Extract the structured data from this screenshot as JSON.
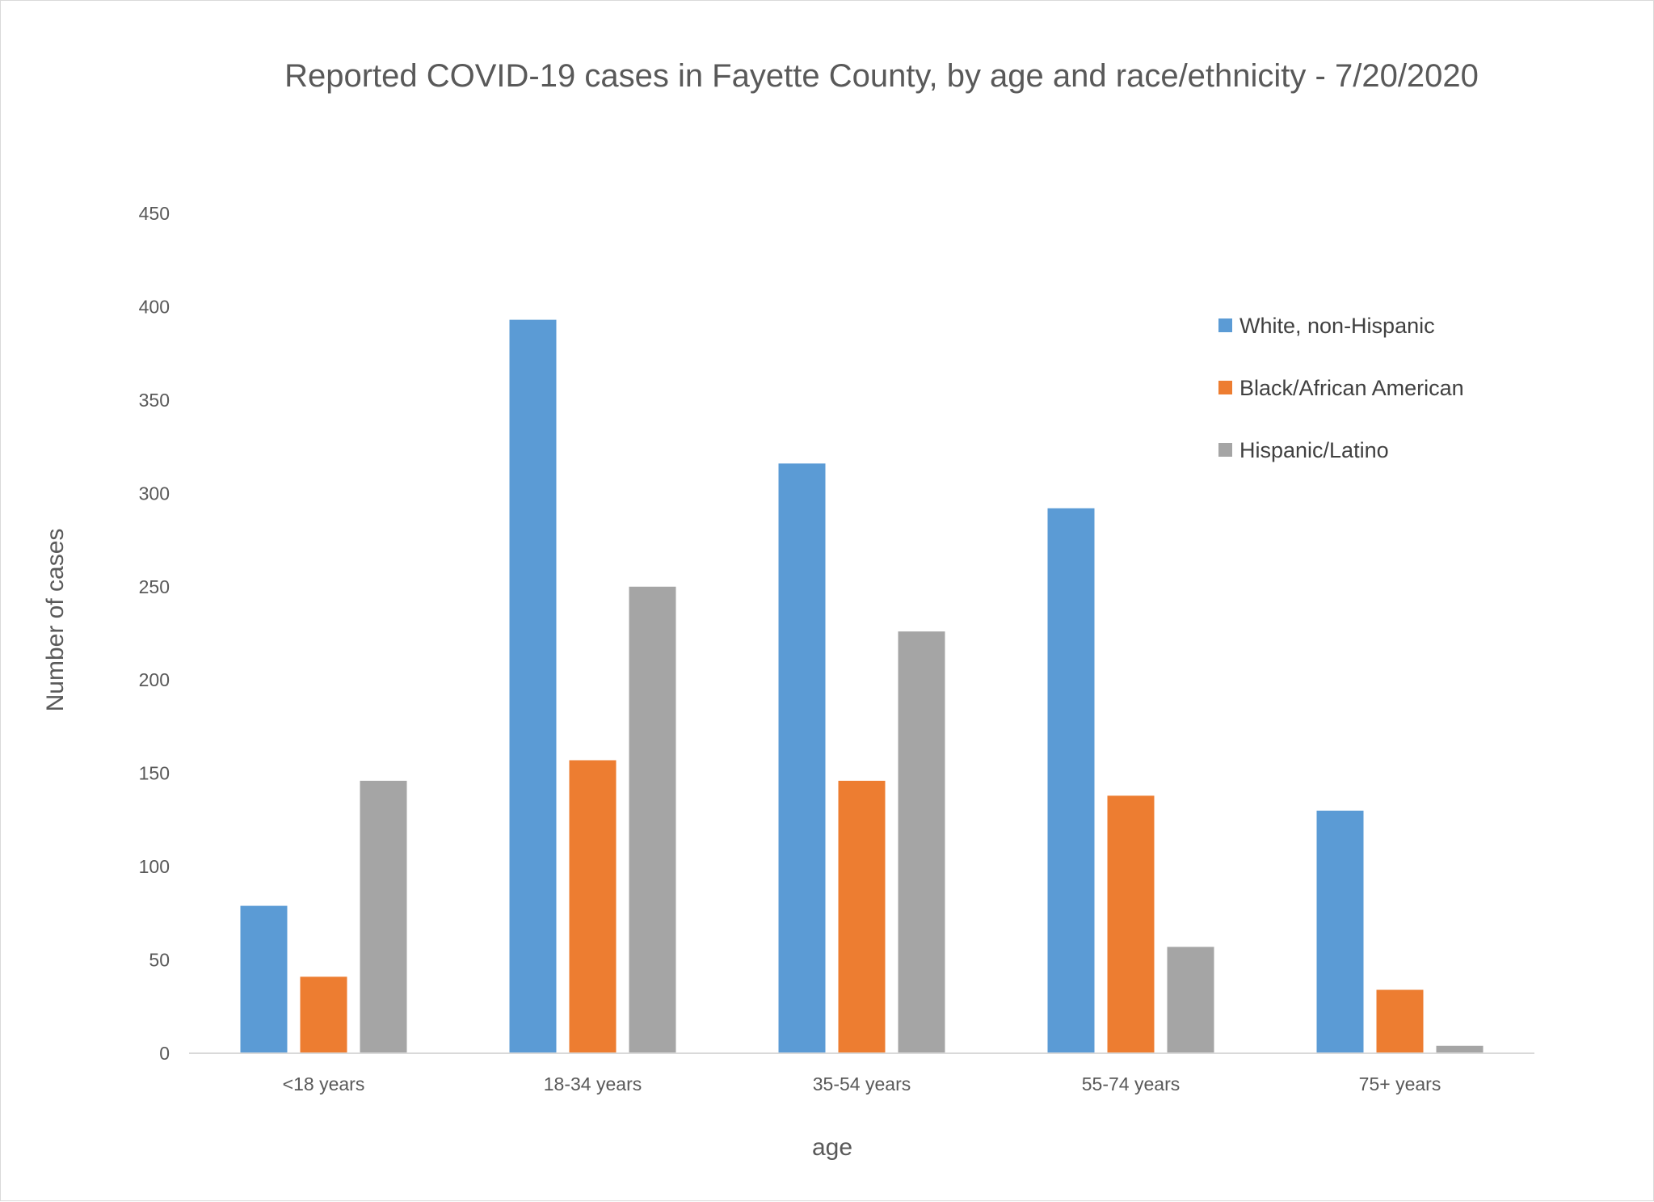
{
  "chart_data": {
    "type": "bar",
    "title": "Reported COVID-19 cases in Fayette County, by age and race/ethnicity - 7/20/2020",
    "xlabel": "age",
    "ylabel": "Number of cases",
    "categories": [
      "<18 years",
      "18-34 years",
      "35-54 years",
      "55-74 years",
      "75+ years"
    ],
    "series": [
      {
        "name": "White, non-Hispanic",
        "color": "#5b9bd5",
        "values": [
          79,
          393,
          316,
          292,
          130
        ]
      },
      {
        "name": "Black/African American",
        "color": "#ed7d31",
        "values": [
          41,
          157,
          146,
          138,
          34
        ]
      },
      {
        "name": "Hispanic/Latino",
        "color": "#a5a5a5",
        "values": [
          146,
          250,
          226,
          57,
          4
        ]
      }
    ],
    "ylim": [
      0,
      450
    ],
    "yticks": [
      0,
      50,
      100,
      150,
      200,
      250,
      300,
      350,
      400,
      450
    ],
    "grid": false,
    "legend_position": "top-right"
  }
}
